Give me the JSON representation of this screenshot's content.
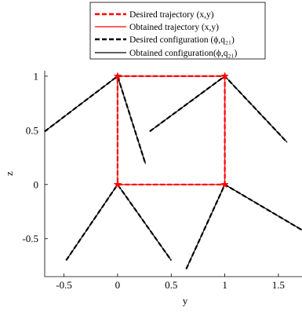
{
  "chart_data": {
    "type": "line",
    "xlabel": "y",
    "ylabel": "z",
    "xlim": [
      -0.68,
      1.72
    ],
    "ylim": [
      -0.85,
      1.05
    ],
    "xticks": [
      -0.5,
      0,
      0.5,
      1,
      1.5
    ],
    "xtick_labels": [
      "-0.5",
      "0",
      "0.5",
      "1",
      "1.5"
    ],
    "yticks": [
      -0.5,
      0,
      0.5,
      1
    ],
    "ytick_labels": [
      "-0.5",
      "0",
      "0.5",
      "1"
    ],
    "grid": false,
    "legend_position": "top-center",
    "legend": [
      {
        "label": "Desired trajectory (x,y)",
        "color": "#ff0000",
        "style": "dashed"
      },
      {
        "label": "Obtained trajectory (x,y)",
        "color": "#ff0000",
        "style": "solid"
      },
      {
        "label": "Desired configuration (ϕ,q₂₁)",
        "color": "#000000",
        "style": "dashed"
      },
      {
        "label": "Obtained configuration(ϕ,q₂₁)",
        "color": "#000000",
        "style": "solid"
      }
    ],
    "series": [
      {
        "name": "Desired trajectory (x,y)",
        "color": "#ff0000",
        "x": [
          0,
          1,
          1,
          0,
          0
        ],
        "y": [
          1,
          1,
          0,
          0,
          1
        ]
      },
      {
        "name": "Obtained trajectory (x,y)",
        "color": "#ff0000",
        "x": [
          0,
          1,
          1,
          0,
          0
        ],
        "y": [
          1,
          1,
          0,
          0,
          1
        ]
      }
    ],
    "configurations": [
      {
        "p0": [
          -0.68,
          0.49
        ],
        "joint": [
          0,
          1
        ],
        "end": [
          0.26,
          0.19
        ]
      },
      {
        "p0": [
          0.3,
          0.49
        ],
        "joint": [
          1,
          1
        ],
        "end": [
          1.58,
          0.39
        ]
      },
      {
        "p0": [
          -0.48,
          -0.7
        ],
        "joint": [
          0,
          0
        ],
        "end": [
          0.5,
          -0.7
        ]
      },
      {
        "p0": [
          0.64,
          -0.78
        ],
        "joint": [
          1,
          0
        ],
        "end": [
          1.72,
          -0.42
        ]
      }
    ],
    "trajectory_markers": [
      [
        0,
        1
      ],
      [
        1,
        1
      ],
      [
        0,
        0
      ],
      [
        1,
        0
      ]
    ]
  }
}
